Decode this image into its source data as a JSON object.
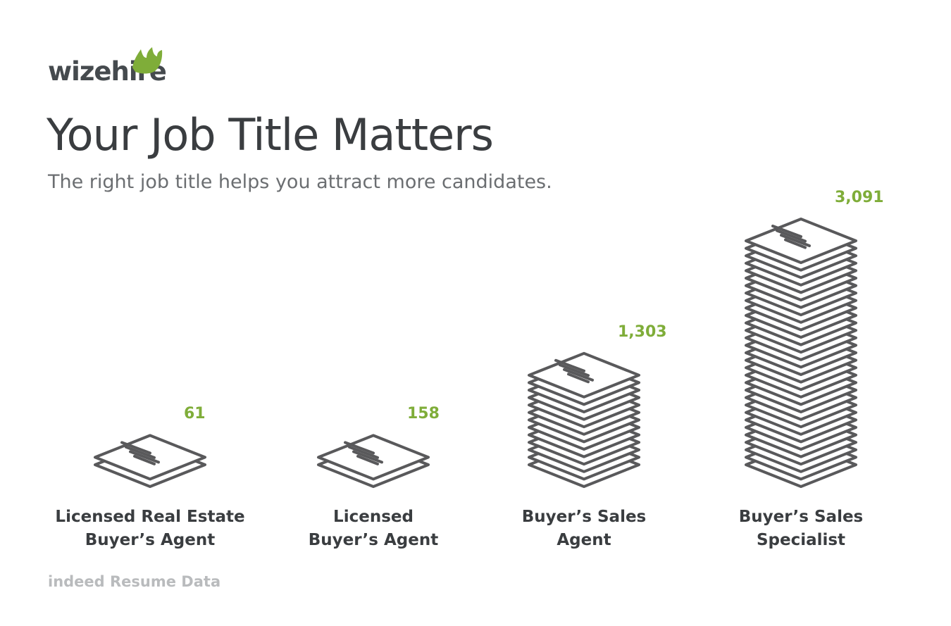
{
  "brand": {
    "logo_text": "wizehire"
  },
  "header": {
    "title": "Your Job Title Matters",
    "subtitle": "The right job title helps you attract more candidates."
  },
  "source": "indeed Resume Data",
  "colors": {
    "accent": "#7fad39",
    "stack_stroke": "#59595b",
    "text": "#3a3d40"
  },
  "chart_data": {
    "type": "bar",
    "categories": [
      "Licensed Real Estate Buyer’s Agent",
      "Licensed Buyer’s Agent",
      "Buyer’s Sales Agent",
      "Buyer’s Sales Specialist"
    ],
    "category_lines": [
      [
        "Licensed Real Estate",
        "Buyer’s Agent"
      ],
      [
        "Licensed",
        "Buyer’s Agent"
      ],
      [
        "Buyer’s Sales",
        "Agent"
      ],
      [
        "Buyer’s Sales",
        "Specialist"
      ]
    ],
    "values": [
      61,
      158,
      1303,
      3091
    ],
    "value_labels": [
      "61",
      "158",
      "1,303",
      "3,091"
    ],
    "title": "Your Job Title Matters",
    "subtitle": "The right job title helps you attract more candidates.",
    "legend": "none",
    "grid": false
  }
}
